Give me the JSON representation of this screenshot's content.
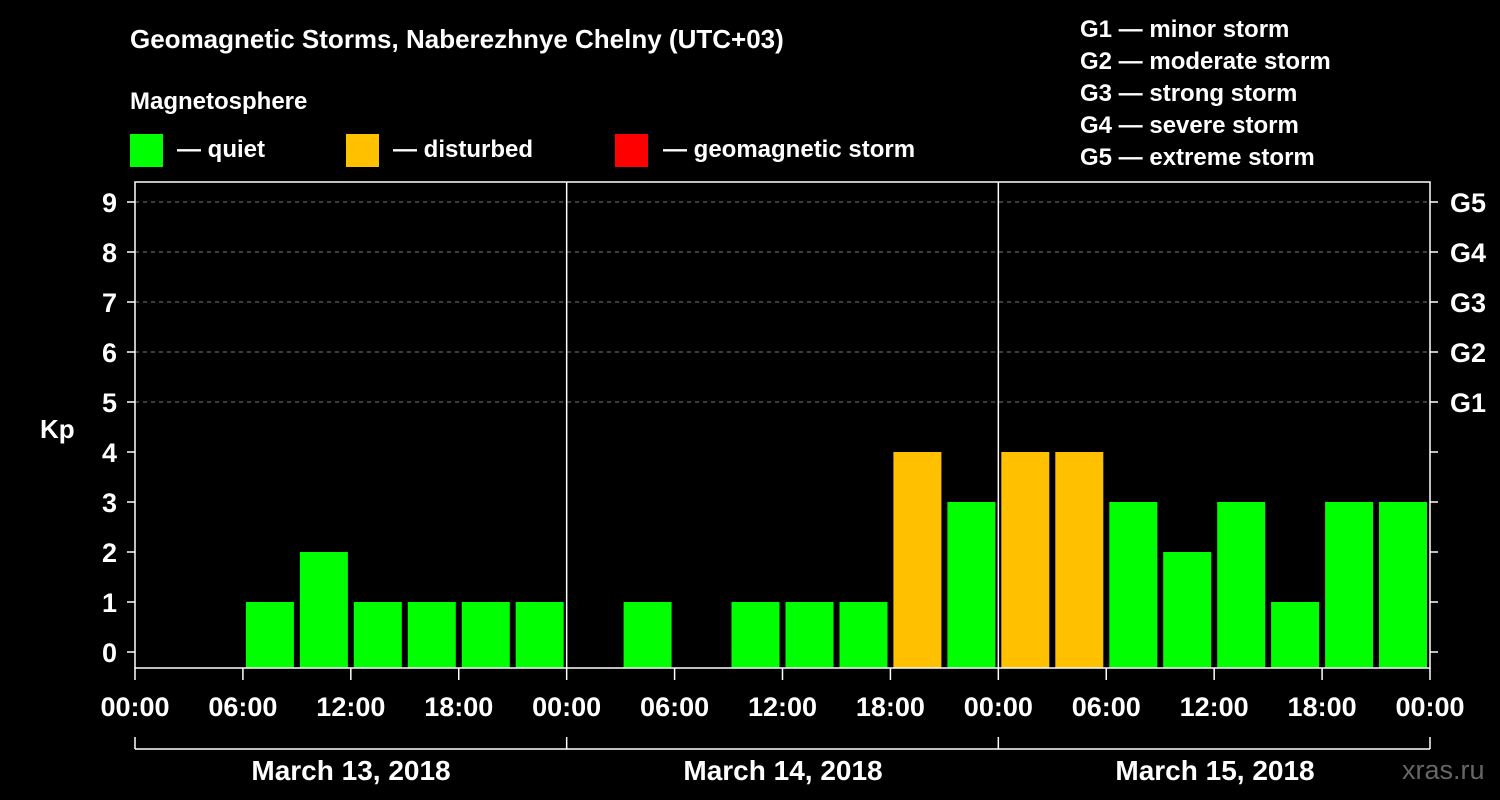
{
  "chart_data": {
    "type": "bar",
    "title": "Geomagnetic Storms, Naberezhnye Chelny (UTC+03)",
    "legend_heading": "Magnetosphere",
    "legend": [
      {
        "label": "— quiet",
        "color": "#00ff00"
      },
      {
        "label": "— disturbed",
        "color": "#ffc000"
      },
      {
        "label": "— geomagnetic storm",
        "color": "#ff0000"
      }
    ],
    "storm_scale": [
      "G1 — minor storm",
      "G2 — moderate storm",
      "G3 — strong storm",
      "G4 — severe storm",
      "G5 — extreme storm"
    ],
    "ylabel": "Kp",
    "ylim": [
      0,
      9
    ],
    "yticks": [
      "0",
      "1",
      "2",
      "3",
      "4",
      "5",
      "6",
      "7",
      "8",
      "9"
    ],
    "g_levels": [
      {
        "label": "G1",
        "kp": 5
      },
      {
        "label": "G2",
        "kp": 6
      },
      {
        "label": "G3",
        "kp": 7
      },
      {
        "label": "G4",
        "kp": 8
      },
      {
        "label": "G5",
        "kp": 9
      }
    ],
    "x_tick_labels": [
      "00:00",
      "06:00",
      "12:00",
      "18:00",
      "00:00",
      "06:00",
      "12:00",
      "18:00",
      "00:00",
      "06:00",
      "12:00",
      "18:00",
      "00:00"
    ],
    "days": [
      "March 13, 2018",
      "March 14, 2018",
      "March 15, 2018"
    ],
    "interval_hours": 3,
    "series": [
      {
        "name": "Kp",
        "values": [
          0,
          0,
          1,
          2,
          1,
          1,
          1,
          1,
          0,
          1,
          0,
          1,
          1,
          1,
          4,
          3,
          4,
          4,
          3,
          2,
          3,
          1,
          3,
          3
        ],
        "status": [
          "quiet",
          "quiet",
          "quiet",
          "quiet",
          "quiet",
          "quiet",
          "quiet",
          "quiet",
          "quiet",
          "quiet",
          "quiet",
          "quiet",
          "quiet",
          "quiet",
          "disturbed",
          "quiet",
          "disturbed",
          "disturbed",
          "quiet",
          "quiet",
          "quiet",
          "quiet",
          "quiet",
          "quiet"
        ]
      }
    ],
    "status_colors": {
      "quiet": "#00ff00",
      "disturbed": "#ffc000",
      "storm": "#ff0000"
    },
    "watermark": "xras.ru"
  }
}
